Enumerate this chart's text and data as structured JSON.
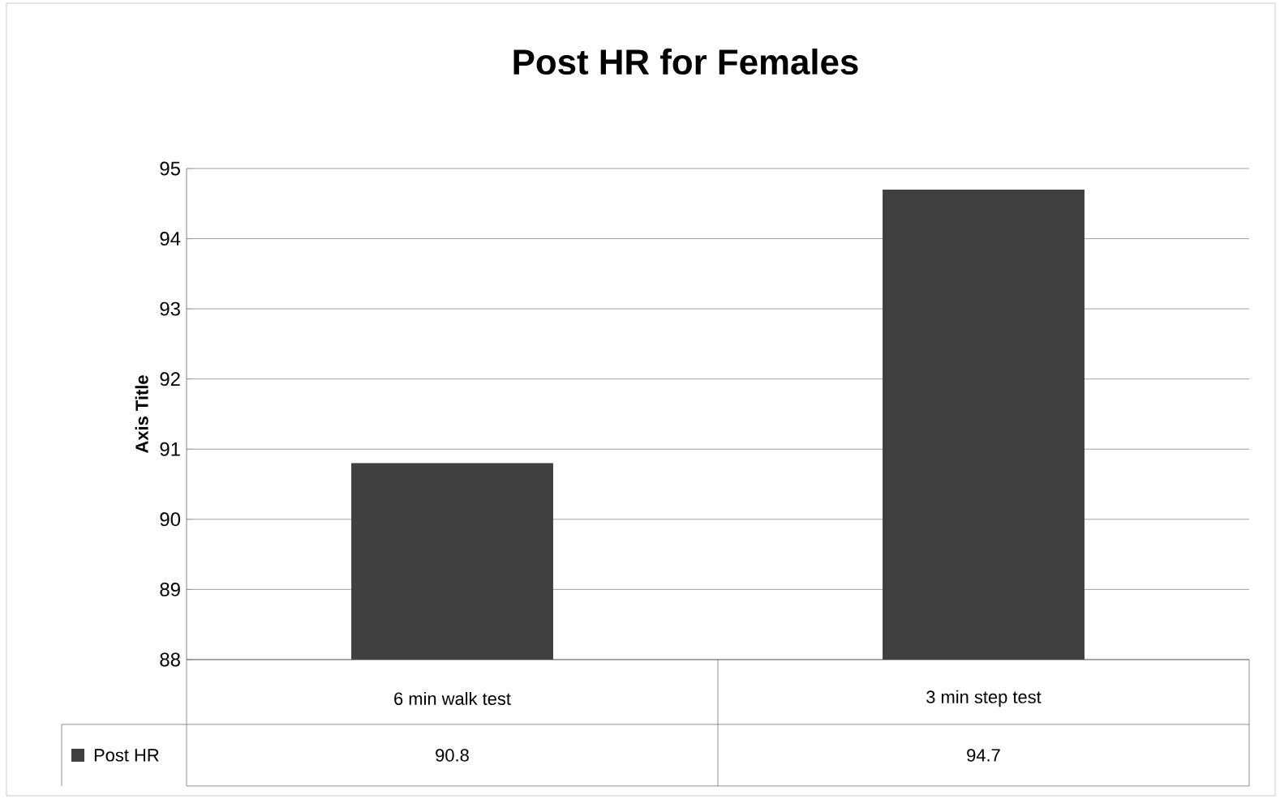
{
  "chart_data": {
    "type": "bar",
    "title": "Post HR for Females",
    "ylabel": "Axis Title",
    "categories": [
      "6 min walk test",
      "3 min step test"
    ],
    "series": [
      {
        "name": "Post HR",
        "color": "#404040",
        "values": [
          90.8,
          94.7
        ]
      }
    ],
    "ylim": [
      88,
      95
    ],
    "yticks": [
      88,
      89,
      90,
      91,
      92,
      93,
      94,
      95
    ],
    "grid": "y",
    "legend": "bottom",
    "data_labels": true
  }
}
